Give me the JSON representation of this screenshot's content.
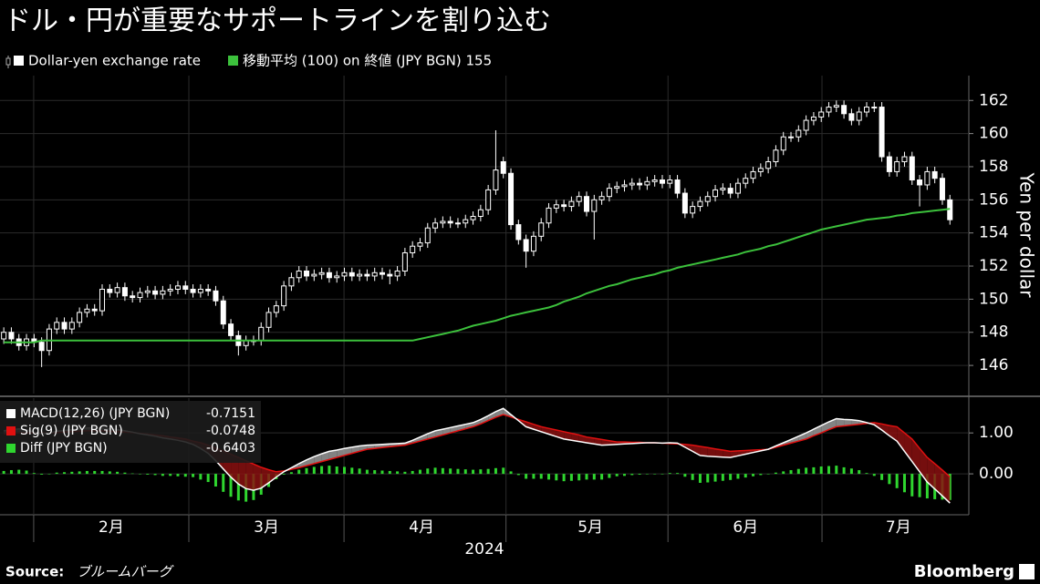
{
  "chart_data": [
    {
      "type": "candlestick",
      "title": "ドル・円が重要なサポートラインを割り込む",
      "y_label": "Yen per dollar",
      "xlim": [
        -0.5,
        127.5
      ],
      "ylim": [
        144.3,
        163.5
      ],
      "yticks": [
        146,
        148,
        150,
        152,
        154,
        156,
        158,
        160,
        162
      ],
      "grid": true,
      "candles": {
        "name": "Dollar-yen exchange rate",
        "color": "#ffffff",
        "open": [
          147.6,
          148.0,
          147.6,
          147.2,
          147.6,
          147.4,
          146.9,
          148.2,
          148.6,
          148.2,
          148.6,
          149.2,
          149.4,
          149.3,
          150.6,
          150.4,
          150.7,
          150.2,
          150.1,
          150.4,
          150.5,
          150.3,
          150.5,
          150.6,
          150.8,
          150.6,
          150.4,
          150.6,
          150.5,
          149.9,
          148.5,
          147.8,
          147.2,
          147.5,
          147.5,
          148.3,
          149.2,
          149.6,
          150.8,
          151.3,
          151.7,
          151.4,
          151.5,
          151.6,
          151.3,
          151.4,
          151.6,
          151.4,
          151.5,
          151.4,
          151.6,
          151.5,
          151.4,
          151.7,
          152.8,
          153.2,
          153.4,
          154.3,
          154.6,
          154.7,
          154.6,
          154.6,
          154.8,
          155.0,
          155.4,
          156.6,
          158.3,
          157.6,
          154.5,
          153.6,
          152.9,
          153.8,
          154.6,
          155.5,
          155.7,
          155.6,
          155.9,
          156.2,
          155.3,
          156.0,
          156.2,
          156.7,
          156.8,
          156.9,
          157.0,
          156.9,
          157.1,
          157.2,
          157.0,
          157.2,
          156.4,
          155.2,
          155.6,
          155.9,
          156.2,
          156.6,
          156.7,
          156.4,
          157.0,
          157.3,
          157.7,
          157.9,
          158.3,
          159.0,
          159.8,
          159.8,
          160.2,
          160.8,
          161.0,
          161.3,
          161.6,
          161.7,
          161.2,
          160.8,
          161.3,
          161.6,
          161.6,
          158.6,
          157.7,
          158.3,
          158.6,
          157.2,
          156.9,
          157.7,
          157.3,
          156.0
        ],
        "high": [
          148.3,
          148.3,
          147.9,
          147.9,
          147.9,
          147.7,
          148.5,
          148.9,
          148.9,
          148.9,
          149.5,
          149.7,
          149.7,
          150.9,
          150.9,
          151.0,
          151.0,
          150.5,
          150.7,
          150.8,
          150.8,
          150.8,
          150.9,
          151.1,
          151.1,
          150.9,
          150.9,
          150.9,
          150.8,
          150.2,
          148.8,
          148.1,
          147.8,
          147.8,
          148.6,
          149.5,
          149.9,
          151.1,
          151.6,
          152.0,
          152.0,
          151.8,
          151.9,
          151.9,
          151.7,
          151.9,
          151.9,
          151.8,
          151.8,
          151.9,
          151.9,
          151.8,
          152.0,
          153.1,
          153.5,
          153.7,
          154.6,
          154.9,
          155.0,
          155.0,
          154.9,
          155.1,
          155.3,
          155.7,
          156.9,
          160.2,
          158.6,
          157.9,
          154.8,
          153.9,
          154.1,
          154.9,
          155.8,
          156.0,
          156.0,
          156.2,
          156.5,
          156.5,
          156.3,
          156.5,
          157.0,
          157.1,
          157.2,
          157.3,
          157.3,
          157.4,
          157.5,
          157.5,
          157.5,
          157.5,
          156.7,
          155.9,
          156.2,
          156.5,
          156.9,
          157.0,
          157.0,
          157.3,
          157.6,
          158.0,
          158.2,
          158.6,
          159.3,
          160.1,
          160.1,
          160.5,
          161.1,
          161.3,
          161.6,
          161.9,
          162.0,
          162.0,
          161.5,
          161.6,
          161.9,
          161.9,
          161.9,
          158.9,
          158.6,
          158.9,
          158.9,
          157.5,
          158.0,
          158.0,
          157.6,
          156.3
        ],
        "low": [
          147.3,
          147.3,
          146.9,
          146.9,
          147.1,
          145.9,
          146.6,
          147.9,
          147.9,
          147.9,
          148.3,
          148.9,
          149.0,
          149.0,
          150.1,
          150.1,
          149.9,
          149.8,
          149.8,
          150.1,
          150.0,
          150.0,
          150.2,
          150.3,
          150.3,
          150.1,
          150.1,
          150.2,
          149.6,
          148.2,
          147.5,
          146.6,
          146.9,
          147.2,
          147.2,
          148.0,
          148.9,
          149.3,
          150.5,
          151.0,
          151.1,
          151.1,
          151.2,
          151.0,
          151.0,
          151.1,
          151.1,
          151.1,
          151.1,
          151.1,
          151.2,
          150.9,
          151.1,
          151.4,
          152.5,
          152.9,
          153.1,
          154.0,
          154.3,
          154.3,
          154.3,
          154.3,
          154.5,
          154.7,
          155.1,
          156.3,
          157.3,
          154.2,
          153.3,
          151.9,
          152.6,
          153.5,
          154.3,
          155.2,
          155.3,
          155.3,
          155.6,
          155.0,
          153.6,
          155.7,
          155.9,
          156.4,
          156.5,
          156.6,
          156.6,
          156.6,
          156.8,
          156.7,
          156.7,
          156.1,
          154.9,
          154.9,
          155.3,
          155.6,
          155.9,
          156.3,
          156.1,
          156.1,
          156.7,
          157.0,
          157.4,
          157.6,
          158.0,
          158.7,
          159.5,
          159.5,
          159.9,
          160.5,
          160.7,
          161.0,
          161.3,
          160.9,
          160.5,
          160.5,
          161.0,
          161.3,
          158.3,
          157.4,
          157.4,
          158.0,
          156.9,
          155.6,
          156.6,
          157.0,
          155.7,
          154.5
        ],
        "close": [
          148.0,
          147.6,
          147.2,
          147.6,
          147.4,
          146.9,
          148.2,
          148.6,
          148.2,
          148.6,
          149.2,
          149.4,
          149.3,
          150.6,
          150.4,
          150.7,
          150.2,
          150.1,
          150.4,
          150.5,
          150.3,
          150.5,
          150.6,
          150.8,
          150.6,
          150.4,
          150.6,
          150.5,
          149.9,
          148.5,
          147.8,
          147.2,
          147.5,
          147.5,
          148.3,
          149.2,
          149.6,
          150.8,
          151.3,
          151.7,
          151.4,
          151.5,
          151.6,
          151.3,
          151.4,
          151.6,
          151.4,
          151.5,
          151.4,
          151.6,
          151.5,
          151.4,
          151.7,
          152.8,
          153.2,
          153.4,
          154.3,
          154.6,
          154.7,
          154.6,
          154.6,
          154.8,
          155.0,
          155.4,
          156.6,
          157.8,
          157.6,
          154.5,
          153.6,
          152.9,
          153.8,
          154.6,
          155.5,
          155.7,
          155.6,
          155.9,
          156.2,
          155.3,
          156.0,
          156.2,
          156.7,
          156.8,
          156.9,
          157.0,
          156.9,
          157.1,
          157.2,
          157.0,
          157.2,
          156.4,
          155.2,
          155.6,
          155.9,
          156.2,
          156.6,
          156.7,
          156.4,
          157.0,
          157.3,
          157.7,
          157.9,
          158.3,
          159.0,
          159.8,
          159.8,
          160.2,
          160.8,
          161.0,
          161.3,
          161.6,
          161.7,
          161.2,
          160.8,
          161.3,
          161.6,
          161.6,
          158.6,
          157.7,
          158.3,
          158.6,
          157.2,
          156.9,
          157.7,
          157.3,
          156.0,
          154.8
        ]
      },
      "series": [
        {
          "name": "移動平均 (100) on 終値 (JPY BGN) 155",
          "color": "#3cc13c",
          "values": [
            147.4,
            147.4,
            147.4,
            147.4,
            147.4,
            147.5,
            147.5,
            147.5,
            147.5,
            147.5,
            147.5,
            147.5,
            147.5,
            147.5,
            147.5,
            147.5,
            147.5,
            147.5,
            147.5,
            147.5,
            147.5,
            147.5,
            147.5,
            147.5,
            147.5,
            147.5,
            147.5,
            147.5,
            147.5,
            147.5,
            147.5,
            147.5,
            147.5,
            147.5,
            147.5,
            147.5,
            147.5,
            147.5,
            147.5,
            147.5,
            147.5,
            147.5,
            147.5,
            147.5,
            147.5,
            147.5,
            147.5,
            147.5,
            147.5,
            147.5,
            147.5,
            147.5,
            147.5,
            147.5,
            147.5,
            147.6,
            147.7,
            147.8,
            147.9,
            148.0,
            148.1,
            148.25,
            148.4,
            148.5,
            148.6,
            148.7,
            148.85,
            149.0,
            149.1,
            149.2,
            149.3,
            149.4,
            149.5,
            149.65,
            149.85,
            150.0,
            150.15,
            150.35,
            150.5,
            150.65,
            150.8,
            150.9,
            151.05,
            151.2,
            151.3,
            151.4,
            151.5,
            151.65,
            151.75,
            151.9,
            152.0,
            152.1,
            152.2,
            152.3,
            152.4,
            152.5,
            152.6,
            152.7,
            152.85,
            152.95,
            153.05,
            153.2,
            153.3,
            153.45,
            153.6,
            153.75,
            153.9,
            154.05,
            154.2,
            154.3,
            154.4,
            154.5,
            154.6,
            154.7,
            154.8,
            154.85,
            154.9,
            154.95,
            155.05,
            155.1,
            155.2,
            155.25,
            155.3,
            155.35,
            155.4,
            155.45
          ]
        }
      ]
    },
    {
      "type": "macd",
      "xlabel": "2024",
      "xlim": [
        -0.5,
        127.5
      ],
      "ylim": [
        -1.0,
        1.85
      ],
      "yticks": [
        {
          "value": 1,
          "label": "1.00"
        },
        {
          "value": 0,
          "label": "0.00"
        }
      ],
      "xticks": [
        {
          "value": 14.2,
          "label": "2月"
        },
        {
          "value": 34.7,
          "label": "3月"
        },
        {
          "value": 55.2,
          "label": "4月"
        },
        {
          "value": 77.5,
          "label": "5月"
        },
        {
          "value": 98,
          "label": "6月"
        },
        {
          "value": 118.2,
          "label": "7月"
        }
      ],
      "series": [
        {
          "name": "MACD(12,26) (JPY BGN)",
          "color": "#ffffff",
          "values": [
            1.05,
            1.08,
            1.1,
            1.08,
            1.02,
            0.98,
            1.0,
            1.04,
            1.06,
            1.08,
            1.1,
            1.12,
            1.12,
            1.12,
            1.1,
            1.08,
            1.05,
            1.02,
            0.98,
            0.95,
            0.92,
            0.88,
            0.85,
            0.82,
            0.78,
            0.72,
            0.62,
            0.5,
            0.32,
            0.12,
            -0.08,
            -0.25,
            -0.36,
            -0.4,
            -0.35,
            -0.22,
            -0.08,
            0.05,
            0.15,
            0.25,
            0.34,
            0.42,
            0.49,
            0.55,
            0.58,
            0.62,
            0.65,
            0.68,
            0.7,
            0.71,
            0.72,
            0.73,
            0.74,
            0.75,
            0.82,
            0.9,
            0.98,
            1.05,
            1.09,
            1.13,
            1.17,
            1.21,
            1.25,
            1.33,
            1.42,
            1.52,
            1.6,
            1.45,
            1.3,
            1.15,
            1.09,
            1.03,
            0.97,
            0.91,
            0.85,
            0.82,
            0.79,
            0.76,
            0.73,
            0.7,
            0.71,
            0.72,
            0.73,
            0.74,
            0.75,
            0.76,
            0.76,
            0.75,
            0.76,
            0.75,
            0.65,
            0.55,
            0.45,
            0.43,
            0.42,
            0.41,
            0.4,
            0.44,
            0.48,
            0.52,
            0.56,
            0.6,
            0.68,
            0.76,
            0.84,
            0.92,
            1.0,
            1.09,
            1.18,
            1.27,
            1.35,
            1.33,
            1.32,
            1.3,
            1.25,
            1.2,
            1.07,
            0.93,
            0.8,
            0.55,
            0.3,
            0.05,
            -0.2,
            -0.37,
            -0.54,
            -0.7151
          ]
        },
        {
          "name": "Sig(9) (JPY BGN)",
          "color": "#e01010",
          "values": [
            0.98,
            0.99,
            1.0,
            1.0,
            1.0,
            1.0,
            1.0,
            1.01,
            1.02,
            1.03,
            1.04,
            1.05,
            1.05,
            1.05,
            1.04,
            1.03,
            1.02,
            1.01,
            0.99,
            0.97,
            0.95,
            0.93,
            0.9,
            0.88,
            0.85,
            0.8,
            0.76,
            0.7,
            0.63,
            0.56,
            0.48,
            0.4,
            0.32,
            0.24,
            0.16,
            0.1,
            0.05,
            0.07,
            0.11,
            0.15,
            0.2,
            0.25,
            0.3,
            0.35,
            0.4,
            0.45,
            0.5,
            0.55,
            0.6,
            0.62,
            0.64,
            0.66,
            0.68,
            0.7,
            0.75,
            0.8,
            0.85,
            0.9,
            0.95,
            1.0,
            1.05,
            1.1,
            1.15,
            1.22,
            1.3,
            1.38,
            1.45,
            1.39,
            1.33,
            1.27,
            1.21,
            1.15,
            1.11,
            1.07,
            1.03,
            0.99,
            0.95,
            0.9,
            0.87,
            0.84,
            0.81,
            0.78,
            0.78,
            0.77,
            0.77,
            0.76,
            0.76,
            0.75,
            0.74,
            0.73,
            0.72,
            0.7,
            0.67,
            0.64,
            0.61,
            0.58,
            0.55,
            0.56,
            0.57,
            0.58,
            0.59,
            0.6,
            0.65,
            0.7,
            0.75,
            0.8,
            0.85,
            0.93,
            1.0,
            1.08,
            1.15,
            1.17,
            1.19,
            1.21,
            1.23,
            1.25,
            1.22,
            1.18,
            1.15,
            1.0,
            0.85,
            0.62,
            0.4,
            0.25,
            0.09,
            -0.0748
          ]
        },
        {
          "name": "Diff (JPY BGN)",
          "color": "#2fd62f",
          "type": "bar",
          "values": [
            0.07,
            0.09,
            0.1,
            0.08,
            0.02,
            -0.02,
            0.0,
            0.03,
            0.04,
            0.05,
            0.06,
            0.07,
            0.07,
            0.07,
            0.06,
            0.05,
            0.03,
            0.01,
            -0.01,
            -0.02,
            -0.03,
            -0.05,
            -0.05,
            -0.06,
            -0.07,
            -0.08,
            -0.14,
            -0.2,
            -0.31,
            -0.44,
            -0.56,
            -0.65,
            -0.68,
            -0.64,
            -0.51,
            -0.32,
            -0.13,
            -0.02,
            0.04,
            0.1,
            0.14,
            0.17,
            0.19,
            0.2,
            0.18,
            0.17,
            0.15,
            0.13,
            0.1,
            0.09,
            0.08,
            0.07,
            0.06,
            0.05,
            0.07,
            0.1,
            0.13,
            0.15,
            0.14,
            0.13,
            0.12,
            0.11,
            0.1,
            0.11,
            0.12,
            0.14,
            0.15,
            0.06,
            -0.03,
            -0.12,
            -0.12,
            -0.12,
            -0.14,
            -0.16,
            -0.18,
            -0.17,
            -0.16,
            -0.14,
            -0.14,
            -0.14,
            -0.1,
            -0.06,
            -0.05,
            -0.03,
            -0.02,
            0,
            0,
            0,
            0.02,
            0.02,
            -0.07,
            -0.15,
            -0.22,
            -0.21,
            -0.19,
            -0.17,
            -0.15,
            -0.12,
            -0.09,
            -0.06,
            -0.03,
            0,
            0.03,
            0.06,
            0.09,
            0.12,
            0.15,
            0.16,
            0.18,
            0.19,
            0.2,
            0.16,
            0.13,
            0.09,
            0.02,
            -0.05,
            -0.15,
            -0.25,
            -0.35,
            -0.45,
            -0.55,
            -0.57,
            -0.6,
            -0.62,
            -0.63,
            -0.6403
          ]
        }
      ]
    }
  ],
  "footer": {
    "source_label": "Source:",
    "source": "ブルームバーグ",
    "brand": "Bloomberg"
  }
}
